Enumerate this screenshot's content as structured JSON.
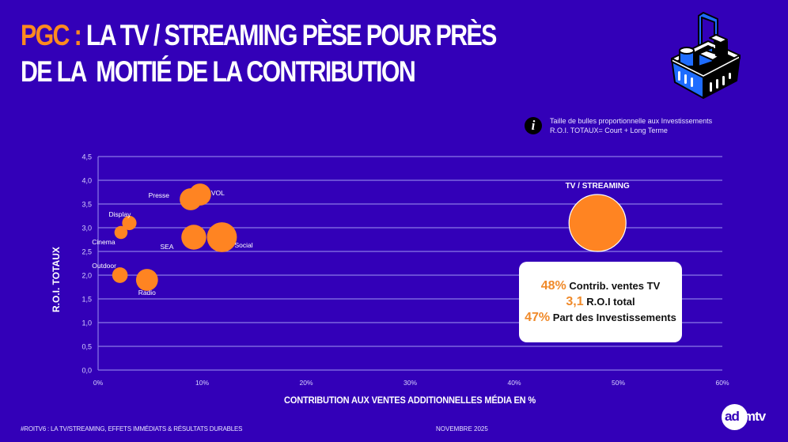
{
  "title": {
    "accent": "PGC :",
    "line1_rest": " LA TV / STREAMING PÈSE POUR PRÈS",
    "line2": "DE LA  MOITIÉ DE LA CONTRIBUTION"
  },
  "note": {
    "icon": "info-icon",
    "line1": "Taille de bulles proportionnelle aux Investissements",
    "line2": "R.O.I. TOTAUX= Court + Long Terme"
  },
  "callout": {
    "rows": [
      {
        "value": "48%",
        "label": " Contrib. ventes TV"
      },
      {
        "value": "3,1",
        "label": " R.O.I total"
      },
      {
        "value": "47%",
        "label": " Part des Investissements"
      }
    ]
  },
  "footer": {
    "left": "#ROITV6 : LA TV/STREAMING, EFFETS IMMÉDIATS & RÉSULTATS DURABLES",
    "middle": "NOVEMBRE 2025",
    "logo_ad": "ad",
    "logo_mtv": "mtv"
  },
  "colors": {
    "background": "#3300b8",
    "bubble": "#ff8422",
    "accent": "#ff8a1f",
    "grid": "#8c7ae6"
  },
  "chart_data": {
    "type": "scatter",
    "subtype": "bubble",
    "xlabel": "CONTRIBUTION AUX VENTES ADDITIONNELLES MÉDIA EN %",
    "ylabel": "R.O.I. TOTAUX",
    "xlim": [
      0,
      60
    ],
    "ylim": [
      0,
      4.5
    ],
    "xticks": [
      "0%",
      "10%",
      "20%",
      "30%",
      "40%",
      "50%",
      "60%"
    ],
    "yticks": [
      "0,0",
      "0,5",
      "1,0",
      "1,5",
      "2,0",
      "2,5",
      "3,0",
      "3,5",
      "4,0",
      "4,5"
    ],
    "grid": "horizontal",
    "size_meaning": "Investissements (relative)",
    "points": [
      {
        "label": "TV / STREAMING",
        "x": 48,
        "y": 3.1,
        "size": 47
      },
      {
        "label": "Presse",
        "x": 8.9,
        "y": 3.6,
        "size": 7
      },
      {
        "label": "VOL",
        "x": 9.8,
        "y": 3.7,
        "size": 7
      },
      {
        "label": "Display",
        "x": 3.0,
        "y": 3.1,
        "size": 3
      },
      {
        "label": "Cinema",
        "x": 2.2,
        "y": 2.9,
        "size": 2.5
      },
      {
        "label": "SEA",
        "x": 9.2,
        "y": 2.8,
        "size": 9
      },
      {
        "label": "Social",
        "x": 11.9,
        "y": 2.8,
        "size": 13
      },
      {
        "label": "Outdoor",
        "x": 2.1,
        "y": 2.0,
        "size": 3.5
      },
      {
        "label": "Radio",
        "x": 4.7,
        "y": 1.9,
        "size": 7
      }
    ]
  }
}
